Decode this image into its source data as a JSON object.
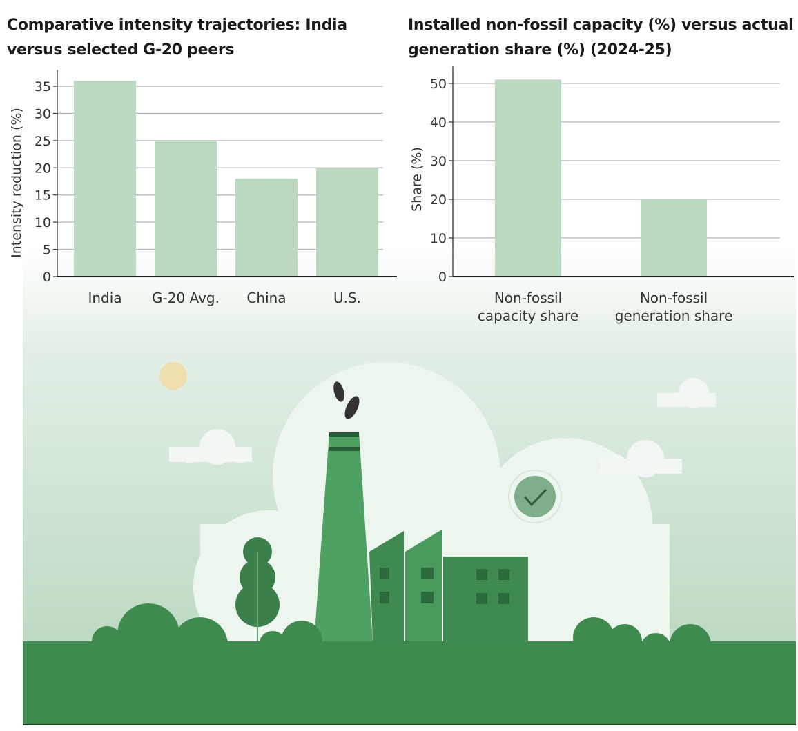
{
  "chart_data": [
    {
      "type": "bar",
      "title": "Comparative intensity trajectories: India versus selected G-20 peers",
      "xlabel": "",
      "ylabel": "Intensity reduction (%)",
      "categories": [
        "India",
        "G-20 Avg.",
        "China",
        "U.S."
      ],
      "values": [
        36,
        25,
        18,
        20
      ],
      "ylim": [
        0,
        37
      ],
      "yticks": [
        0,
        5,
        10,
        15,
        20,
        25,
        30,
        35
      ],
      "grid": true,
      "bar_color": "#bbd9c1"
    },
    {
      "type": "bar",
      "title": "Installed non-fossil capacity (%) versus actual generation share (%) (2024-25)",
      "xlabel": "",
      "ylabel": "Share (%)",
      "categories": [
        [
          "Non-fossil",
          "capacity share"
        ],
        [
          "Non-fossil",
          "generation share"
        ]
      ],
      "values": [
        51,
        20
      ],
      "ylim": [
        0,
        53
      ],
      "yticks": [
        0,
        10,
        20,
        30,
        40,
        50
      ],
      "grid": true,
      "bar_color": "#bbd9c1"
    }
  ],
  "colors": {
    "ground": "#3f8a4f",
    "factory": "#4fa063",
    "sky": "#cfe4d4"
  }
}
